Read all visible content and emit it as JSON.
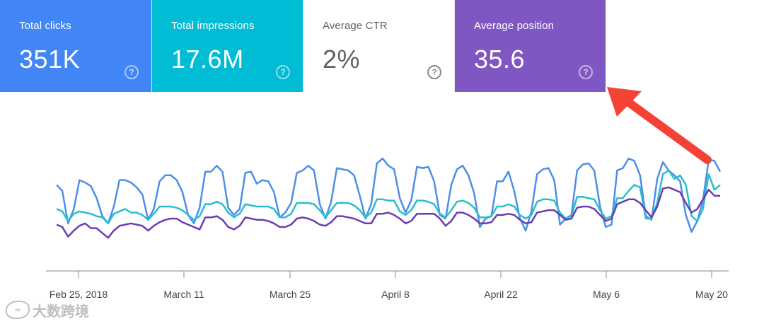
{
  "cards": [
    {
      "label": "Total clicks",
      "value": "351K",
      "bg": "#4285f4",
      "fg": "#ffffff"
    },
    {
      "label": "Total impressions",
      "value": "17.6M",
      "bg": "#00bcd4",
      "fg": "#ffffff"
    },
    {
      "label": "Average CTR",
      "value": "2%",
      "bg": "#ffffff",
      "fg": "#616161"
    },
    {
      "label": "Average position",
      "value": "35.6",
      "bg": "#7e57c2",
      "fg": "#ffffff"
    }
  ],
  "help_glyph": "?",
  "watermark": {
    "text": "大数跨境"
  },
  "annotation": {
    "arrow_color": "#f44336",
    "points_to": "Average position"
  },
  "chart_data": {
    "type": "line",
    "title": "",
    "xlabel": "",
    "ylabel": "",
    "x_tick_labels": [
      "Feb 25, 2018",
      "March 11",
      "March 25",
      "April 8",
      "April 22",
      "May 6",
      "May 20"
    ],
    "x_start": "Feb 20, 2018",
    "x_end": "May 21, 2018",
    "ylim": [
      0,
      100
    ],
    "grid": false,
    "legend": "none",
    "series": [
      {
        "color": "#4e8ee9",
        "values": [
          58,
          53,
          26,
          38,
          62,
          60,
          57,
          47,
          32,
          26,
          40,
          62,
          62,
          60,
          56,
          50,
          29,
          38,
          61,
          66,
          66,
          62,
          52,
          33,
          26,
          39,
          69,
          69,
          74,
          69,
          39,
          33,
          38,
          68,
          69,
          59,
          62,
          61,
          52,
          31,
          35,
          43,
          68,
          70,
          74,
          70,
          42,
          30,
          44,
          72,
          71,
          70,
          66,
          49,
          30,
          42,
          76,
          80,
          74,
          71,
          47,
          35,
          45,
          73,
          72,
          73,
          61,
          33,
          30,
          58,
          71,
          74,
          66,
          51,
          23,
          30,
          32,
          61,
          61,
          69,
          53,
          30,
          20,
          36,
          67,
          71,
          72,
          62,
          25,
          30,
          33,
          70,
          75,
          76,
          70,
          40,
          23,
          25,
          70,
          72,
          80,
          78,
          66,
          32,
          29,
          63,
          77,
          70,
          66,
          61,
          33,
          19,
          28,
          45,
          79,
          78,
          69
        ]
      },
      {
        "color": "#2bbdcd",
        "values": [
          38,
          36,
          28,
          34,
          36,
          35,
          34,
          32,
          31,
          26,
          34,
          36,
          38,
          35,
          35,
          33,
          29,
          34,
          40,
          40,
          40,
          39,
          37,
          33,
          29,
          32,
          42,
          42,
          44,
          42,
          35,
          31,
          34,
          42,
          41,
          40,
          40,
          40,
          38,
          31,
          31,
          34,
          43,
          43,
          43,
          42,
          37,
          31,
          37,
          43,
          43,
          43,
          41,
          37,
          31,
          35,
          46,
          46,
          45,
          45,
          36,
          33,
          37,
          45,
          45,
          44,
          42,
          34,
          31,
          37,
          44,
          45,
          43,
          39,
          31,
          31,
          32,
          40,
          40,
          42,
          40,
          33,
          30,
          33,
          44,
          46,
          46,
          45,
          35,
          30,
          32,
          48,
          48,
          47,
          46,
          37,
          30,
          32,
          47,
          47,
          53,
          58,
          56,
          30,
          30,
          43,
          67,
          70,
          63,
          66,
          58,
          32,
          28,
          38,
          67,
          54,
          58
        ]
      },
      {
        "color": "#6a3db1",
        "values": [
          25,
          23,
          15,
          20,
          24,
          26,
          22,
          22,
          18,
          14,
          20,
          24,
          25,
          26,
          25,
          24,
          20,
          24,
          27,
          29,
          30,
          30,
          27,
          25,
          23,
          21,
          31,
          31,
          32,
          29,
          23,
          21,
          24,
          31,
          30,
          29,
          29,
          28,
          26,
          23,
          23,
          25,
          30,
          31,
          30,
          28,
          25,
          24,
          27,
          32,
          32,
          31,
          30,
          28,
          26,
          26,
          34,
          34,
          35,
          33,
          30,
          26,
          28,
          34,
          34,
          34,
          34,
          30,
          24,
          28,
          35,
          35,
          33,
          30,
          26,
          26,
          27,
          33,
          33,
          34,
          33,
          29,
          26,
          27,
          35,
          36,
          37,
          37,
          33,
          29,
          30,
          39,
          40,
          40,
          38,
          33,
          28,
          30,
          42,
          44,
          46,
          46,
          43,
          37,
          31,
          40,
          55,
          56,
          54,
          52,
          43,
          35,
          38,
          46,
          54,
          49,
          49
        ]
      }
    ]
  }
}
